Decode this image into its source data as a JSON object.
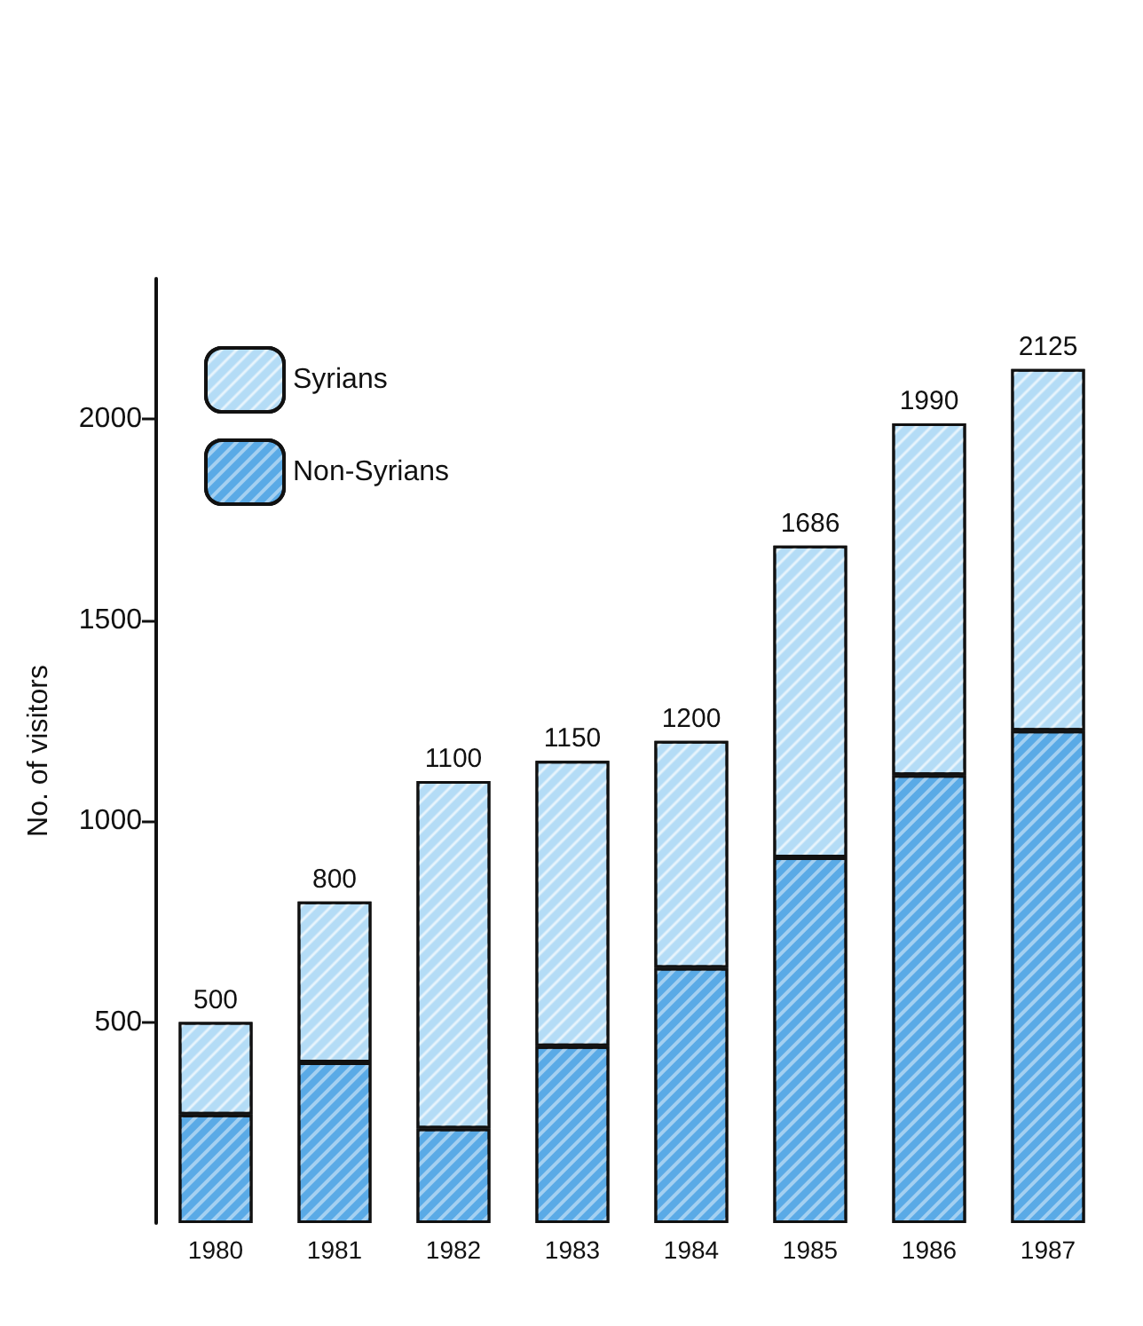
{
  "chart_data": {
    "type": "bar",
    "ylabel": "No. of visitors",
    "categories": [
      "1980",
      "1981",
      "1982",
      "1983",
      "1984",
      "1985",
      "1986",
      "1987"
    ],
    "stacked": true,
    "series": [
      {
        "name": "Non-Syrians",
        "color": "#5aaae6",
        "values": [
          270,
          400,
          235,
          440,
          635,
          910,
          1115,
          1225
        ]
      },
      {
        "name": "Syrians",
        "color": "#b4dcf6",
        "values": [
          230,
          400,
          865,
          710,
          565,
          776,
          875,
          900
        ]
      }
    ],
    "totals": [
      "500",
      "800",
      "1100",
      "1150",
      "1200",
      "1686",
      "1990",
      "2125"
    ],
    "ylim": [
      0,
      2350
    ],
    "yticks": [
      500,
      1000,
      1500,
      2000
    ],
    "grid": false,
    "legend": "top left"
  }
}
